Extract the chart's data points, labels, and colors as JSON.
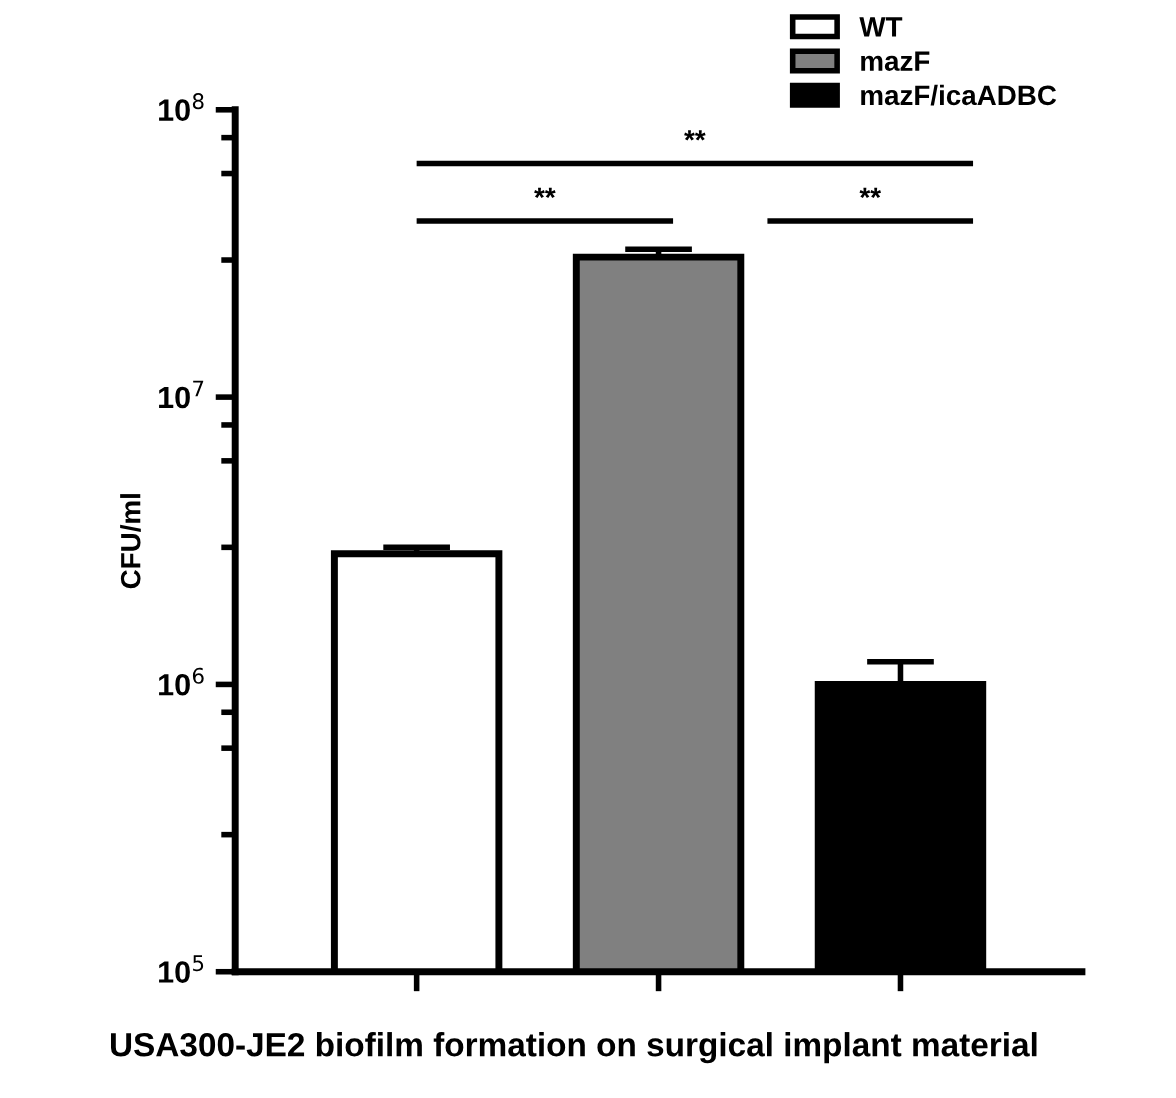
{
  "chart_data": {
    "type": "bar",
    "xlabel": "USA300-JE2 biofilm formation on surgical implant material",
    "ylabel": "CFU/ml",
    "categories": [
      null,
      null,
      null
    ],
    "series": [
      {
        "name": "WT",
        "color": "#ffffff",
        "values": [
          2850000,
          null,
          null
        ],
        "errors": [
          150000,
          null,
          null
        ]
      },
      {
        "name": "mazF",
        "color": "#808080",
        "values": [
          null,
          30700000,
          null
        ],
        "errors": [
          null,
          2000000,
          null
        ]
      },
      {
        "name": "mazF/icaADBC",
        "color": "#000000",
        "values": [
          null,
          null,
          1000000
        ],
        "errors": [
          null,
          null,
          200000
        ]
      }
    ],
    "log": "y",
    "ylim": [
      100000,
      100000000
    ],
    "yticks": [
      {
        "value": 100000,
        "label": "10$^{5}$"
      },
      {
        "value": 1000000,
        "label": "10$^{6}$"
      },
      {
        "value": 10000000,
        "label": "10$^{7}$"
      },
      {
        "value": 100000000,
        "label": "10$^{8}$"
      }
    ],
    "annotations": [
      "**",
      "**",
      "**"
    ],
    "legend": "top right",
    "grid": false
  }
}
